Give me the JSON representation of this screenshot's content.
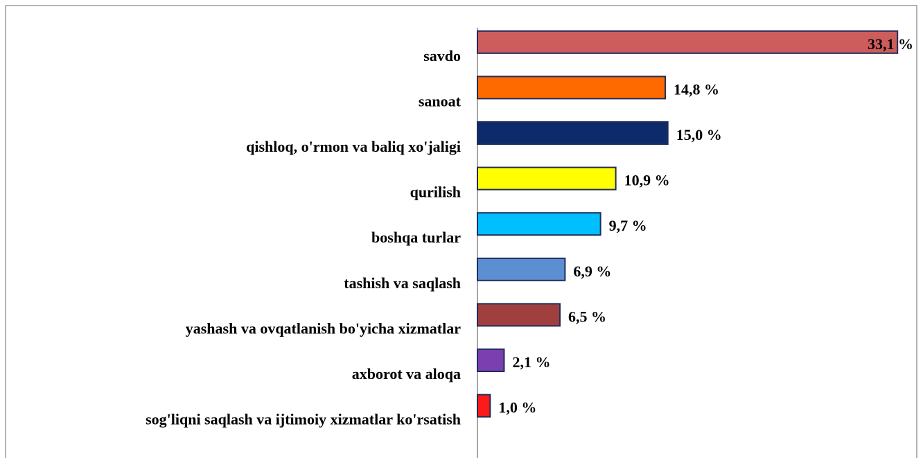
{
  "chart_data": {
    "type": "bar",
    "orientation": "horizontal",
    "categories": [
      "savdo",
      "sanoat",
      "qishloq, o'rmon va baliq xo'jaligi",
      "qurilish",
      "boshqa turlar",
      "tashish va saqlash",
      "yashash va ovqatlanish bo'yicha xizmatlar",
      "axborot va aloqa",
      "sog'liqni saqlash va ijtimoiy xizmatlar ko'rsatish"
    ],
    "values": [
      33.1,
      14.8,
      15.0,
      10.9,
      9.7,
      6.9,
      6.5,
      2.1,
      1.0
    ],
    "value_labels": [
      "33,1 %",
      "14,8 %",
      "15,0 %",
      "10,9 %",
      "9,7 %",
      "6,9 %",
      "6,5 %",
      "2,1 %",
      "1,0 %"
    ],
    "colors": [
      "#cd5c5c",
      "#ff6a00",
      "#0d2b6b",
      "#ffff00",
      "#00bfff",
      "#5b8fd1",
      "#a0403e",
      "#7b3fb0",
      "#ff1a1a"
    ],
    "xlim": [
      0,
      35
    ]
  }
}
